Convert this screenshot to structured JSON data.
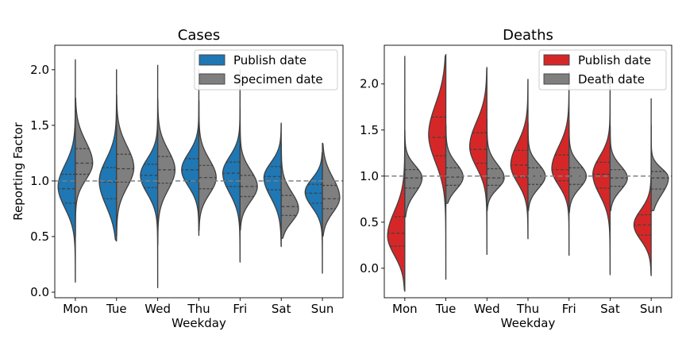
{
  "chart_data": [
    {
      "type": "violin",
      "title": "Cases",
      "xlabel": "Weekday",
      "ylabel": "Reporting Factor",
      "categories": [
        "Mon",
        "Tue",
        "Wed",
        "Thu",
        "Fri",
        "Sat",
        "Sun"
      ],
      "ylim": [
        -0.05,
        2.22
      ],
      "yticks": [
        "0.0",
        "0.5",
        "1.0",
        "1.5",
        "2.0"
      ],
      "ytick_values": [
        0.0,
        0.5,
        1.0,
        1.5,
        2.0
      ],
      "reference_line": 1.0,
      "legend_position": "top-right",
      "series": [
        {
          "name": "Publish date",
          "side": "left",
          "color": "#1f77b4",
          "violins": [
            {
              "min": 0.09,
              "max": 2.09,
              "q1": 0.8,
              "median": 0.93,
              "q3": 1.06,
              "peak": 0.95
            },
            {
              "min": 0.46,
              "max": 2.0,
              "q1": 0.84,
              "median": 0.99,
              "q3": 1.12,
              "peak": 1.0
            },
            {
              "min": 0.04,
              "max": 2.04,
              "q1": 0.94,
              "median": 1.05,
              "q3": 1.15,
              "peak": 1.05
            },
            {
              "min": 0.51,
              "max": 2.0,
              "q1": 1.0,
              "median": 1.1,
              "q3": 1.2,
              "peak": 1.1
            },
            {
              "min": 0.27,
              "max": 2.0,
              "q1": 0.95,
              "median": 1.07,
              "q3": 1.17,
              "peak": 1.07
            },
            {
              "min": 0.41,
              "max": 1.52,
              "q1": 0.92,
              "median": 1.04,
              "q3": 1.13,
              "peak": 1.03
            },
            {
              "min": 0.17,
              "max": 1.26,
              "q1": 0.8,
              "median": 0.89,
              "q3": 0.97,
              "peak": 0.9
            }
          ]
        },
        {
          "name": "Specimen date",
          "side": "right",
          "color": "#7f7f7f",
          "violins": [
            {
              "min": 0.5,
              "max": 1.75,
              "q1": 1.06,
              "median": 1.16,
              "q3": 1.29,
              "peak": 1.16
            },
            {
              "min": 0.5,
              "max": 1.78,
              "q1": 0.99,
              "median": 1.11,
              "q3": 1.24,
              "peak": 1.12
            },
            {
              "min": 0.42,
              "max": 1.74,
              "q1": 0.98,
              "median": 1.1,
              "q3": 1.22,
              "peak": 1.1
            },
            {
              "min": 0.55,
              "max": 1.72,
              "q1": 0.93,
              "median": 1.03,
              "q3": 1.14,
              "peak": 1.03
            },
            {
              "min": 0.55,
              "max": 1.66,
              "q1": 0.86,
              "median": 0.95,
              "q3": 1.05,
              "peak": 0.95
            },
            {
              "min": 0.48,
              "max": 1.34,
              "q1": 0.69,
              "median": 0.77,
              "q3": 0.87,
              "peak": 0.75
            },
            {
              "min": 0.5,
              "max": 1.34,
              "q1": 0.75,
              "median": 0.84,
              "q3": 0.96,
              "peak": 0.85
            }
          ]
        }
      ]
    },
    {
      "type": "violin",
      "title": "Deaths",
      "xlabel": "Weekday",
      "ylabel": "",
      "categories": [
        "Mon",
        "Tue",
        "Wed",
        "Thu",
        "Fri",
        "Sat",
        "Sun"
      ],
      "ylim": [
        -0.32,
        2.42
      ],
      "yticks": [
        "0.0",
        "0.5",
        "1.0",
        "1.5",
        "2.0"
      ],
      "ytick_values": [
        0.0,
        0.5,
        1.0,
        1.5,
        2.0
      ],
      "reference_line": 1.0,
      "legend_position": "top-right",
      "series": [
        {
          "name": "Publish date",
          "side": "left",
          "color": "#d62728",
          "violins": [
            {
              "min": -0.25,
              "max": 2.3,
              "q1": 0.24,
              "median": 0.38,
              "q3": 0.56,
              "peak": 0.35
            },
            {
              "min": -0.12,
              "max": 2.32,
              "q1": 1.22,
              "median": 1.42,
              "q3": 1.64,
              "peak": 1.45
            },
            {
              "min": 0.15,
              "max": 2.18,
              "q1": 1.14,
              "median": 1.29,
              "q3": 1.47,
              "peak": 1.32
            },
            {
              "min": 0.32,
              "max": 2.05,
              "q1": 0.99,
              "median": 1.12,
              "q3": 1.28,
              "peak": 1.12
            },
            {
              "min": 0.14,
              "max": 2.13,
              "q1": 0.95,
              "median": 1.07,
              "q3": 1.23,
              "peak": 1.08
            },
            {
              "min": -0.07,
              "max": 2.12,
              "q1": 0.87,
              "median": 1.02,
              "q3": 1.15,
              "peak": 1.02
            },
            {
              "min": -0.08,
              "max": 1.84,
              "q1": 0.36,
              "median": 0.47,
              "q3": 0.58,
              "peak": 0.47
            }
          ]
        },
        {
          "name": "Death date",
          "side": "right",
          "color": "#7f7f7f",
          "violins": [
            {
              "min": 0.55,
              "max": 1.5,
              "q1": 0.87,
              "median": 0.98,
              "q3": 1.07,
              "peak": 0.98
            },
            {
              "min": 0.7,
              "max": 1.55,
              "q1": 0.9,
              "median": 0.99,
              "q3": 1.09,
              "peak": 0.99
            },
            {
              "min": 0.62,
              "max": 1.62,
              "q1": 0.9,
              "median": 0.98,
              "q3": 1.08,
              "peak": 0.98
            },
            {
              "min": 0.62,
              "max": 1.58,
              "q1": 0.91,
              "median": 1.0,
              "q3": 1.09,
              "peak": 1.0
            },
            {
              "min": 0.6,
              "max": 1.6,
              "q1": 0.91,
              "median": 1.0,
              "q3": 1.09,
              "peak": 1.0
            },
            {
              "min": 0.62,
              "max": 1.55,
              "q1": 0.89,
              "median": 0.98,
              "q3": 1.07,
              "peak": 0.98
            },
            {
              "min": 0.62,
              "max": 1.55,
              "q1": 0.86,
              "median": 0.98,
              "q3": 1.05,
              "peak": 0.98
            }
          ]
        }
      ]
    }
  ]
}
